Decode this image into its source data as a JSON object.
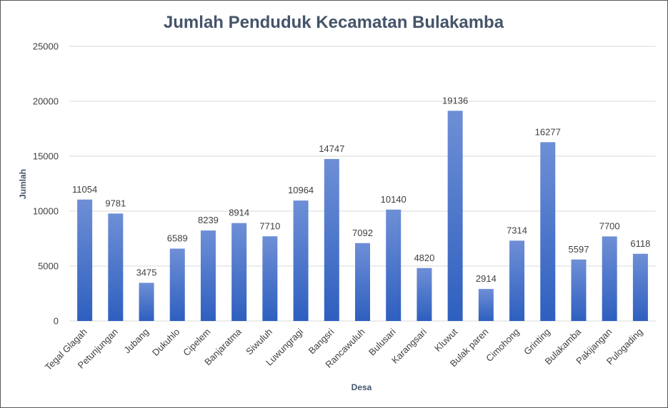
{
  "chart_data": {
    "type": "bar",
    "title": "Jumlah Penduduk Kecamatan Bulakamba",
    "xlabel": "Desa",
    "ylabel": "Jumlah",
    "ylim": [
      0,
      25000
    ],
    "yticks": [
      0,
      5000,
      10000,
      15000,
      20000,
      25000
    ],
    "grid": true,
    "legend": "none",
    "categories": [
      "Tegal Glagah",
      "Petunjungan",
      "Jubang",
      "Dukuhlo",
      "Cipelem",
      "Banjaratma",
      "Siwuluh",
      "Luwungragi",
      "Bangsri",
      "Rancawuluh",
      "Bulusari",
      "Karangsari",
      "Kluwut",
      "Bulak paren",
      "Cimohong",
      "Grinting",
      "Bulakamba",
      "Pakijangan",
      "Pulogading"
    ],
    "values": [
      11054,
      9781,
      3475,
      6589,
      8239,
      8914,
      7710,
      10964,
      14747,
      7092,
      10140,
      4820,
      19136,
      2914,
      7314,
      16277,
      5597,
      7700,
      6118
    ],
    "colors": {
      "bar_top": "#6e8fd6",
      "bar_bottom": "#2e5fbf",
      "title": "#44546a",
      "text": "#404040",
      "grid": "#d9d9d9"
    }
  }
}
